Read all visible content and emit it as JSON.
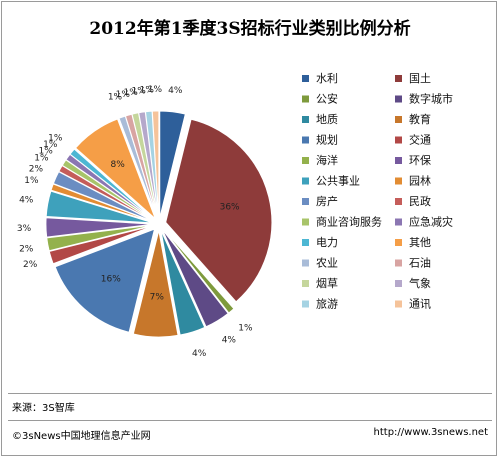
{
  "chart_data": {
    "type": "pie",
    "title": "2012年第1季度3S招标行业类别比例分析",
    "legend_position": "right",
    "slices": [
      {
        "name": "水利",
        "value": 4,
        "label": "4%",
        "color": "#2E5F9A"
      },
      {
        "name": "国土",
        "value": 36,
        "label": "36%",
        "color": "#8E3B3A"
      },
      {
        "name": "公安",
        "value": 1,
        "label": "1%",
        "color": "#7E9A3C"
      },
      {
        "name": "数字城市",
        "value": 4,
        "label": "4%",
        "color": "#5E4A86"
      },
      {
        "name": "地质",
        "value": 4,
        "label": "4%",
        "color": "#2F8AA0"
      },
      {
        "name": "教育",
        "value": 7,
        "label": "7%",
        "color": "#C7772B"
      },
      {
        "name": "规划",
        "value": 16,
        "label": "16%",
        "color": "#4A78B0"
      },
      {
        "name": "交通",
        "value": 2,
        "label": "2%",
        "color": "#B24846"
      },
      {
        "name": "海洋",
        "value": 2,
        "label": "2%",
        "color": "#93B14C"
      },
      {
        "name": "环保",
        "value": 3,
        "label": "3%",
        "color": "#76599E"
      },
      {
        "name": "公共事业",
        "value": 4,
        "label": "4%",
        "color": "#3EA1BC"
      },
      {
        "name": "园林",
        "value": 1,
        "label": "1%",
        "color": "#E28C33"
      },
      {
        "name": "房产",
        "value": 2,
        "label": "2%",
        "color": "#6B8DC2"
      },
      {
        "name": "民政",
        "value": 1,
        "label": "1%",
        "color": "#C55D5A"
      },
      {
        "name": "商业咨询服务",
        "value": 1,
        "label": "1%",
        "color": "#A8C46A"
      },
      {
        "name": "应急减灾",
        "value": 1,
        "label": "1%",
        "color": "#8B76B2"
      },
      {
        "name": "电力",
        "value": 1,
        "label": "1%",
        "color": "#4DB7D3"
      },
      {
        "name": "其他",
        "value": 8,
        "label": "8%",
        "color": "#F59E47"
      },
      {
        "name": "农业",
        "value": 1,
        "label": "1%",
        "color": "#A9BCD8"
      },
      {
        "name": "石油",
        "value": 1,
        "label": "1%",
        "color": "#D8A4A2"
      },
      {
        "name": "烟草",
        "value": 1,
        "label": "1%",
        "color": "#C5D69C"
      },
      {
        "name": "气象",
        "value": 1,
        "label": "1%",
        "color": "#B5A8CB"
      },
      {
        "name": "旅游",
        "value": 1,
        "label": "1%",
        "color": "#A5D3E3"
      },
      {
        "name": "通讯",
        "value": 1,
        "label": "1%",
        "color": "#F5C39A"
      }
    ]
  },
  "source": "来源：3S智库",
  "footer": {
    "left": "©3sNews中国地理信息产业网",
    "right": "http://www.3snews.net"
  }
}
